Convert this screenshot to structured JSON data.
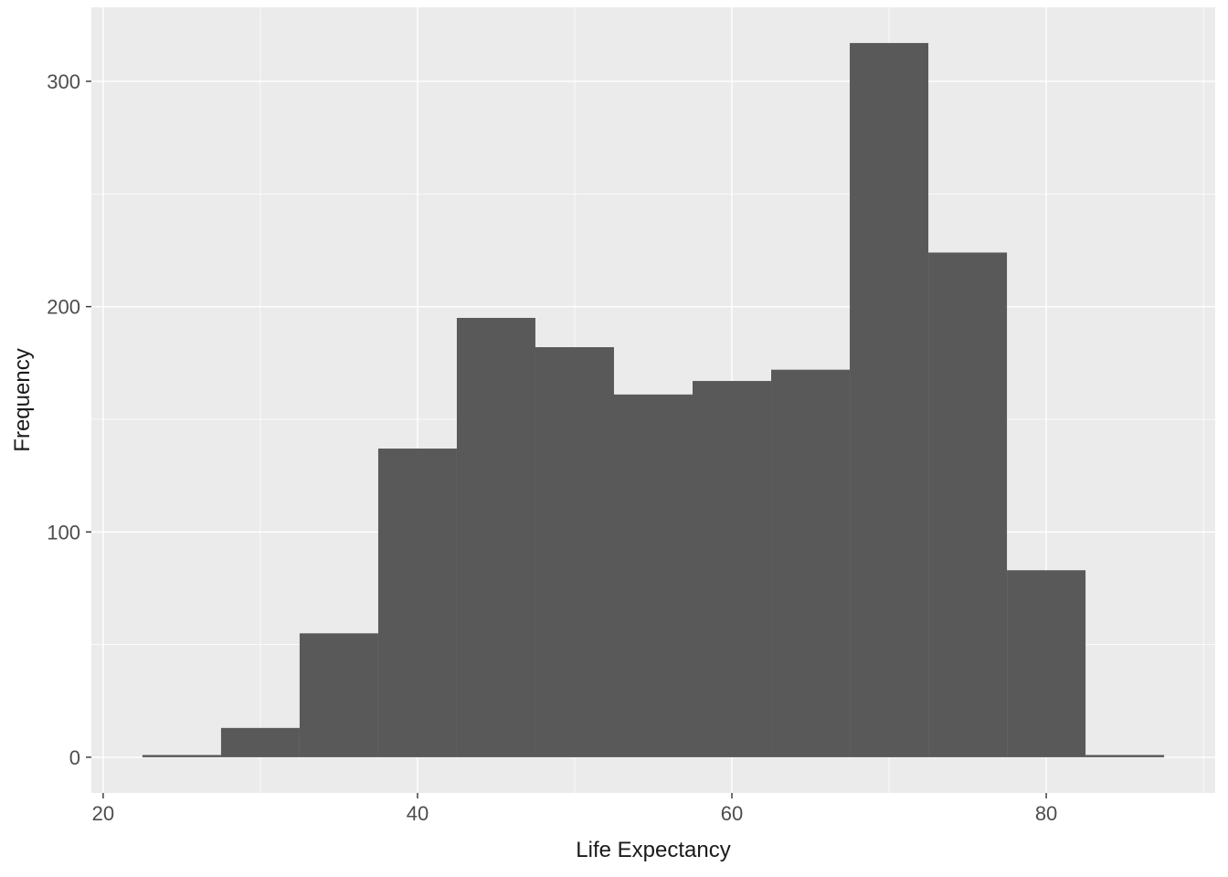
{
  "chart_data": {
    "type": "bar",
    "subtype": "histogram",
    "title": "",
    "xlabel": "Life Expectancy",
    "ylabel": "Frequency",
    "bin_width": 5,
    "bins": [
      {
        "x0": 22.5,
        "x1": 27.5,
        "count": 1
      },
      {
        "x0": 27.5,
        "x1": 32.5,
        "count": 13
      },
      {
        "x0": 32.5,
        "x1": 37.5,
        "count": 55
      },
      {
        "x0": 37.5,
        "x1": 42.5,
        "count": 137
      },
      {
        "x0": 42.5,
        "x1": 47.5,
        "count": 195
      },
      {
        "x0": 47.5,
        "x1": 52.5,
        "count": 182
      },
      {
        "x0": 52.5,
        "x1": 57.5,
        "count": 161
      },
      {
        "x0": 57.5,
        "x1": 62.5,
        "count": 167
      },
      {
        "x0": 62.5,
        "x1": 67.5,
        "count": 172
      },
      {
        "x0": 67.5,
        "x1": 72.5,
        "count": 317
      },
      {
        "x0": 72.5,
        "x1": 77.5,
        "count": 224
      },
      {
        "x0": 77.5,
        "x1": 82.5,
        "count": 83
      },
      {
        "x0": 82.5,
        "x1": 87.5,
        "count": 1
      }
    ],
    "x_ticks": [
      20,
      40,
      60,
      80
    ],
    "y_ticks": [
      0,
      100,
      200,
      300
    ],
    "x_minor_ticks": [
      30,
      50,
      70,
      90
    ],
    "y_minor_ticks": [
      50,
      150,
      250
    ],
    "x_domain": [
      19.25,
      90.75
    ],
    "y_domain": [
      -15.85,
      332.85
    ],
    "grid": true,
    "legend_position": "none",
    "colors": {
      "bar_fill": "#595959",
      "panel_background": "#EBEBEB",
      "grid_major": "#FFFFFF",
      "grid_minor": "#FFFFFF",
      "tick_text": "#4D4D4D",
      "axis_title_text": "#1A1A1A",
      "tick_mark": "#333333",
      "figure_background": "#FFFFFF"
    }
  }
}
